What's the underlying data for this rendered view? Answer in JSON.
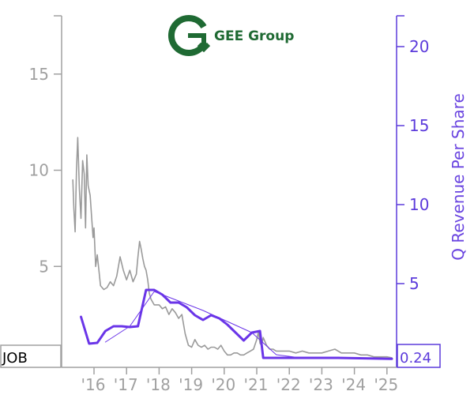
{
  "logo": {
    "name": "GEE Group"
  },
  "ticker": "JOB",
  "last_value": "0.24",
  "colors": {
    "price": "#9a9a9a",
    "revenue": "#6a35e8",
    "axis_left": "#a0a0a0",
    "axis_right": "#5c3bdb",
    "logo_green": "#1f6a33"
  },
  "chart_data": {
    "type": "line",
    "xlabel": "",
    "x_ticks": [
      "'16",
      "'17",
      "'18",
      "'19",
      "'20",
      "'21",
      "'22",
      "'23",
      "'24",
      "'25"
    ],
    "left_axis": {
      "label": "",
      "range": [
        0,
        18
      ],
      "ticks": [
        5,
        10,
        15
      ]
    },
    "right_axis": {
      "label": "Q Revenue Per Share",
      "range": [
        0,
        22
      ],
      "ticks": [
        5,
        10,
        15,
        20
      ]
    },
    "series": [
      {
        "axis": "left",
        "style": "thin",
        "points": [
          [
            2015.35,
            9.5
          ],
          [
            2015.38,
            8.0
          ],
          [
            2015.42,
            6.8
          ],
          [
            2015.46,
            10.0
          ],
          [
            2015.5,
            11.7
          ],
          [
            2015.55,
            9.0
          ],
          [
            2015.6,
            7.5
          ],
          [
            2015.65,
            10.5
          ],
          [
            2015.7,
            9.8
          ],
          [
            2015.74,
            7.0
          ],
          [
            2015.78,
            10.8
          ],
          [
            2015.82,
            9.2
          ],
          [
            2015.88,
            8.7
          ],
          [
            2015.93,
            7.5
          ],
          [
            2015.97,
            6.5
          ],
          [
            2016.0,
            7.0
          ],
          [
            2016.05,
            5.0
          ],
          [
            2016.1,
            5.6
          ],
          [
            2016.15,
            4.8
          ],
          [
            2016.2,
            4.0
          ],
          [
            2016.3,
            3.8
          ],
          [
            2016.4,
            3.9
          ],
          [
            2016.5,
            4.2
          ],
          [
            2016.6,
            4.0
          ],
          [
            2016.7,
            4.5
          ],
          [
            2016.8,
            5.5
          ],
          [
            2016.9,
            4.8
          ],
          [
            2017.0,
            4.3
          ],
          [
            2017.1,
            4.8
          ],
          [
            2017.2,
            4.2
          ],
          [
            2017.3,
            4.6
          ],
          [
            2017.35,
            5.5
          ],
          [
            2017.4,
            6.3
          ],
          [
            2017.45,
            5.9
          ],
          [
            2017.5,
            5.4
          ],
          [
            2017.55,
            5.0
          ],
          [
            2017.6,
            4.8
          ],
          [
            2017.65,
            4.3
          ],
          [
            2017.7,
            3.6
          ],
          [
            2017.75,
            3.3
          ],
          [
            2017.85,
            3.0
          ],
          [
            2018.0,
            3.0
          ],
          [
            2018.1,
            2.8
          ],
          [
            2018.2,
            2.9
          ],
          [
            2018.3,
            2.5
          ],
          [
            2018.4,
            2.8
          ],
          [
            2018.5,
            2.6
          ],
          [
            2018.6,
            2.3
          ],
          [
            2018.7,
            2.5
          ],
          [
            2018.8,
            1.5
          ],
          [
            2018.9,
            0.9
          ],
          [
            2019.0,
            0.8
          ],
          [
            2019.1,
            1.2
          ],
          [
            2019.2,
            0.9
          ],
          [
            2019.3,
            0.8
          ],
          [
            2019.4,
            0.9
          ],
          [
            2019.5,
            0.7
          ],
          [
            2019.6,
            0.8
          ],
          [
            2019.7,
            0.8
          ],
          [
            2019.8,
            0.7
          ],
          [
            2019.9,
            0.9
          ],
          [
            2020.0,
            0.6
          ],
          [
            2020.1,
            0.4
          ],
          [
            2020.2,
            0.4
          ],
          [
            2020.3,
            0.5
          ],
          [
            2020.4,
            0.5
          ],
          [
            2020.5,
            0.4
          ],
          [
            2020.6,
            0.4
          ],
          [
            2020.7,
            0.5
          ],
          [
            2020.8,
            0.6
          ],
          [
            2020.9,
            0.7
          ],
          [
            2021.0,
            1.2
          ],
          [
            2021.05,
            1.6
          ],
          [
            2021.1,
            1.0
          ],
          [
            2021.15,
            0.9
          ],
          [
            2021.2,
            1.3
          ],
          [
            2021.3,
            0.9
          ],
          [
            2021.4,
            0.7
          ],
          [
            2021.5,
            0.7
          ],
          [
            2021.6,
            0.6
          ],
          [
            2021.7,
            0.6
          ],
          [
            2021.8,
            0.6
          ],
          [
            2021.9,
            0.6
          ],
          [
            2022.0,
            0.6
          ],
          [
            2022.2,
            0.5
          ],
          [
            2022.4,
            0.6
          ],
          [
            2022.6,
            0.5
          ],
          [
            2022.8,
            0.5
          ],
          [
            2023.0,
            0.5
          ],
          [
            2023.2,
            0.6
          ],
          [
            2023.4,
            0.7
          ],
          [
            2023.6,
            0.5
          ],
          [
            2023.8,
            0.5
          ],
          [
            2024.0,
            0.5
          ],
          [
            2024.2,
            0.4
          ],
          [
            2024.4,
            0.4
          ],
          [
            2024.6,
            0.3
          ],
          [
            2024.8,
            0.3
          ],
          [
            2025.0,
            0.3
          ],
          [
            2025.15,
            0.25
          ]
        ]
      },
      {
        "axis": "right",
        "style": "thick",
        "points": [
          [
            2015.6,
            2.9
          ],
          [
            2015.85,
            1.2
          ],
          [
            2016.1,
            1.25
          ],
          [
            2016.35,
            2.0
          ],
          [
            2016.6,
            2.3
          ],
          [
            2016.85,
            2.3
          ],
          [
            2017.1,
            2.25
          ],
          [
            2017.35,
            2.3
          ],
          [
            2017.6,
            4.6
          ],
          [
            2017.85,
            4.6
          ],
          [
            2018.1,
            4.3
          ],
          [
            2018.35,
            3.8
          ],
          [
            2018.6,
            3.8
          ],
          [
            2018.85,
            3.5
          ],
          [
            2019.1,
            3.0
          ],
          [
            2019.35,
            2.7
          ],
          [
            2019.6,
            3.0
          ],
          [
            2019.85,
            2.8
          ],
          [
            2020.1,
            2.4
          ],
          [
            2020.35,
            1.9
          ],
          [
            2020.6,
            1.4
          ],
          [
            2020.85,
            1.9
          ],
          [
            2021.1,
            2.0
          ],
          [
            2021.2,
            0.3
          ],
          [
            2021.5,
            0.3
          ],
          [
            2022.0,
            0.3
          ],
          [
            2022.5,
            0.3
          ],
          [
            2023.0,
            0.3
          ],
          [
            2023.5,
            0.3
          ],
          [
            2024.0,
            0.28
          ],
          [
            2024.5,
            0.26
          ],
          [
            2025.15,
            0.24
          ]
        ]
      },
      {
        "axis": "right",
        "style": "hairline",
        "points": [
          [
            2016.35,
            1.3
          ],
          [
            2017.1,
            2.3
          ],
          [
            2017.85,
            4.5
          ],
          [
            2018.6,
            3.9
          ],
          [
            2019.35,
            3.3
          ],
          [
            2020.1,
            2.6
          ],
          [
            2020.85,
            1.9
          ],
          [
            2021.6,
            0.5
          ],
          [
            2022.35,
            0.3
          ],
          [
            2023.1,
            0.3
          ],
          [
            2023.85,
            0.29
          ],
          [
            2024.6,
            0.26
          ],
          [
            2025.15,
            0.24
          ]
        ]
      }
    ]
  }
}
